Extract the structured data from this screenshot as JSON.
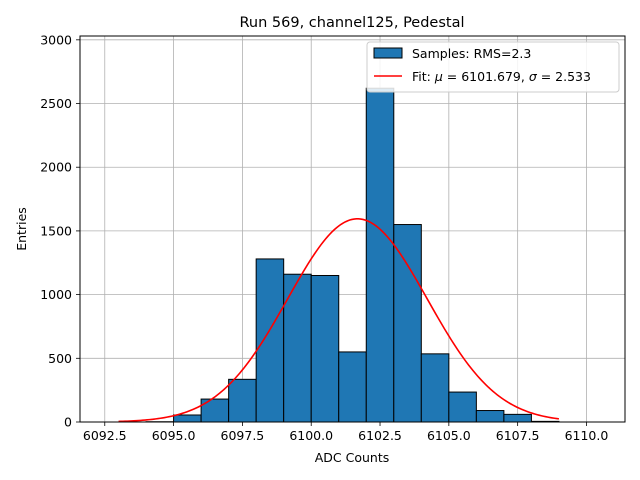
{
  "chart_data": {
    "type": "bar",
    "title": "Run 569, channel125, Pedestal",
    "xlabel": "ADC Counts",
    "ylabel": "Entries",
    "xlim": [
      6091.6,
      6111.4
    ],
    "ylim": [
      0,
      3030
    ],
    "grid": true,
    "x_ticks": [
      6092.5,
      6095.0,
      6097.5,
      6100.0,
      6102.5,
      6105.0,
      6107.5,
      6110.0
    ],
    "x_tick_labels": [
      "6092.5",
      "6095.0",
      "6097.5",
      "6100.0",
      "6102.5",
      "6105.0",
      "6107.5",
      "6110.0"
    ],
    "y_ticks": [
      0,
      500,
      1000,
      1500,
      2000,
      2500,
      3000
    ],
    "y_tick_labels": [
      "0",
      "500",
      "1000",
      "1500",
      "2000",
      "2500",
      "3000"
    ],
    "bin_edges": [
      6093,
      6094,
      6095,
      6096,
      6097,
      6098,
      6099,
      6100,
      6101,
      6102,
      6103,
      6104,
      6105,
      6106,
      6107,
      6108,
      6109
    ],
    "series": [
      {
        "name": "Samples: RMS=2.3",
        "kind": "histogram",
        "color": "#1f77b4",
        "edgecolor": "#000000",
        "values": [
          0,
          2,
          55,
          180,
          335,
          1280,
          1160,
          1150,
          550,
          2620,
          1550,
          535,
          235,
          90,
          60,
          5
        ]
      },
      {
        "name": "Fit: μ = 6101.679, σ = 2.533",
        "kind": "gaussian_fit",
        "color": "#ff0000",
        "mu": 6101.679,
        "sigma": 2.533,
        "amplitude": 1595,
        "x_range": [
          6093,
          6109
        ]
      }
    ],
    "legend": {
      "placement": "top-right",
      "entries": [
        {
          "label": "Samples: RMS=2.3",
          "type": "patch",
          "color": "#1f77b4"
        },
        {
          "label_prefix": "Fit: ",
          "mu_symbol": "μ",
          "mu_text": " = 6101.679, ",
          "sigma_symbol": "σ",
          "sigma_text": " = 2.533",
          "type": "line",
          "color": "#ff0000"
        }
      ]
    }
  }
}
